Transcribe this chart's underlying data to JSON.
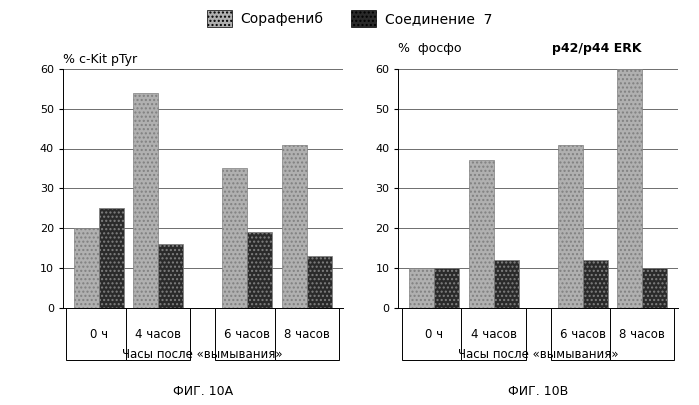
{
  "legend_labels": [
    "Сорафениб",
    "Соединение  7"
  ],
  "fig10a": {
    "title": "% c-Kit pTyr",
    "xlabel": "Часы после «вымывания»",
    "figname": "ФИГ. 10А",
    "categories": [
      "0 ч",
      "4 часов",
      "6 часов",
      "8 часов"
    ],
    "sorafenib": [
      20,
      54,
      35,
      41
    ],
    "compound7": [
      25,
      16,
      19,
      13
    ],
    "ylim": [
      0,
      60
    ],
    "yticks": [
      0,
      10,
      20,
      30,
      40,
      50,
      60
    ]
  },
  "fig10b": {
    "title_prefix": "%  фосфо  ",
    "title_bold": "p42/p44 ERK",
    "xlabel": "Часы после «вымывания»",
    "figname": "ФИГ. 10В",
    "categories": [
      "0 ч",
      "4 часов",
      "6 часов",
      "8 часов"
    ],
    "sorafenib": [
      10,
      37,
      41,
      60
    ],
    "compound7": [
      10,
      12,
      12,
      10
    ],
    "ylim": [
      0,
      60
    ],
    "yticks": [
      0,
      10,
      20,
      30,
      40,
      50,
      60
    ]
  },
  "bar_color_sorafenib": "#b0b0b0",
  "bar_color_compound7": "#2a2a2a",
  "bar_hatch_sorafenib": "....",
  "bar_hatch_compound7": "...."
}
